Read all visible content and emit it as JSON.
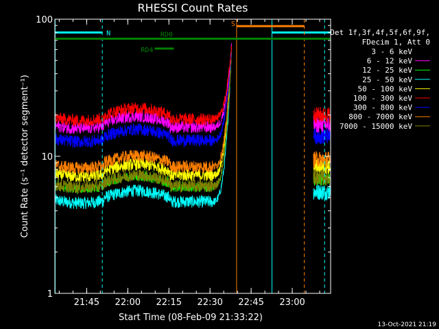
{
  "chart_data": {
    "type": "line",
    "title": "RHESSI Count Rates",
    "xlabel": "Start Time (08-Feb-09 21:33:22)",
    "ylabel": "Count Rate (s⁻¹ detector segment⁻¹)",
    "yscale": "log",
    "ylim": [
      1,
      100
    ],
    "xlim_minutes_after_start": [
      0,
      100.6
    ],
    "x_unit": "minutes after 21:33:22",
    "x_tick_labels": [
      "21:45",
      "22:00",
      "22:15",
      "22:30",
      "22:45",
      "23:00"
    ],
    "x_tick_minutes": [
      11.6,
      26.6,
      41.6,
      56.6,
      71.6,
      86.6
    ],
    "y_tick_labels": [
      "1",
      "10",
      "100"
    ],
    "y_ticks": [
      1,
      10,
      100
    ],
    "legend_header": [
      "Det 1f,3f,4f,5f,6f,9f,",
      "FDecim 1, Att 0"
    ],
    "legend_placement": "right",
    "series": [
      {
        "name": "3 - 6 keV",
        "color": "#000000",
        "pre_level": 7.0,
        "post_level": 8.0
      },
      {
        "name": "6 - 12 keV",
        "color": "#ff00ff",
        "pre_level": 17.5,
        "post_level": 17.0
      },
      {
        "name": "12 - 25 keV",
        "color": "#00ff00",
        "pre_level": 6.5,
        "post_level": 7.0
      },
      {
        "name": "25 - 50 keV",
        "color": "#00ffff",
        "pre_level": 5.0,
        "post_level": 5.5
      },
      {
        "name": "50 - 100 keV",
        "color": "#ffff00",
        "pre_level": 7.8,
        "post_level": 8.5
      },
      {
        "name": "100 - 300 keV",
        "color": "#ff0000",
        "pre_level": 20.0,
        "post_level": 20.0
      },
      {
        "name": "300 - 800 keV",
        "color": "#0000ff",
        "pre_level": 14.0,
        "post_level": 14.0
      },
      {
        "name": "800 - 7000 keV",
        "color": "#ff8000",
        "pre_level": 9.0,
        "post_level": 9.5
      },
      {
        "name": "7000 - 15000 keV",
        "color": "#808000",
        "pre_level": 6.5,
        "post_level": 7.0
      }
    ],
    "data_gap_minutes": [
      64.5,
      94.2
    ],
    "markers": [
      {
        "label": "N",
        "color": "#00ffff",
        "kind": "night",
        "x_start": 0.1,
        "x_end": 17.3,
        "x_vertical_dashed": [
          17.3,
          98.4
        ],
        "x_vertical_solid": [
          0.1,
          79.2
        ],
        "level": 80
      },
      {
        "label": "S",
        "color": "#ff8000",
        "kind": "saa",
        "x_start": 66.3,
        "x_end": 91.0,
        "x_vertical_solid": [
          66.3
        ],
        "x_vertical_dashed": [
          91.0
        ],
        "level": 89
      },
      {
        "label": "RD0",
        "color": "#008000",
        "kind": "decimation",
        "x_start": 0.1,
        "x_end": 100.6,
        "level": 72
      },
      {
        "label": "RD4",
        "color": "#008000",
        "kind": "decimation",
        "x_start": 36.4,
        "x_end": 43.4,
        "level": 61
      }
    ],
    "footer_date": "13-Oct-2021 21:19"
  }
}
